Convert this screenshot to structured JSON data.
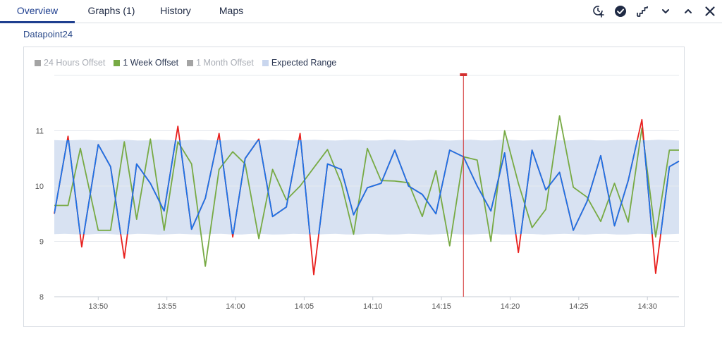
{
  "tabs": [
    {
      "label": "Overview",
      "active": true
    },
    {
      "label": "Graphs (1)",
      "active": false
    },
    {
      "label": "History",
      "active": false
    },
    {
      "label": "Maps",
      "active": false
    }
  ],
  "toolbar": {
    "icons": [
      "clock-plus-icon",
      "check-circle-icon",
      "stairs-icon",
      "chevron-down-icon",
      "chevron-up-icon",
      "close-icon"
    ]
  },
  "datapoint_title": "Datapoint24",
  "legend": [
    {
      "label": "24 Hours Offset",
      "color": "#a4a4a4",
      "enabled": false
    },
    {
      "label": "1 Week Offset",
      "color": "#77aa44",
      "enabled": true
    },
    {
      "label": "1 Month Offset",
      "color": "#a4a4a4",
      "enabled": false
    },
    {
      "label": "Expected Range",
      "color": "#c9d6ee",
      "enabled": true
    }
  ],
  "colors": {
    "accent": "#1f3f8f",
    "actual_line": "#1a73e8",
    "week_offset_line": "#77aa44",
    "out_of_range": "#e8201e",
    "expected_band": "#d8e2f2",
    "marker": "#d32f2f"
  },
  "chart_data": {
    "type": "line",
    "title": "",
    "xlabel": "",
    "ylabel": "",
    "ylim": [
      8,
      12
    ],
    "yticks": [
      8,
      9,
      10,
      11
    ],
    "x_tick_labels": [
      "13:50",
      "13:55",
      "14:00",
      "14:05",
      "14:10",
      "14:15",
      "14:20",
      "14:25",
      "14:30"
    ],
    "x_range_minutes": [
      -3.2,
      42.3
    ],
    "x_tick_minutes": [
      0,
      5,
      10,
      15,
      20,
      25,
      30,
      35,
      40
    ],
    "marker_minute": 26.6,
    "expected_range": {
      "lower": 9.13,
      "upper": 10.83
    },
    "series": [
      {
        "name": "",
        "role": "actual",
        "points": [
          [
            -3.2,
            9.5
          ],
          [
            -2.2,
            10.9
          ],
          [
            -1.2,
            8.9
          ],
          [
            0.0,
            10.75
          ],
          [
            0.9,
            10.35
          ],
          [
            1.9,
            8.7
          ],
          [
            2.8,
            10.4
          ],
          [
            3.8,
            10.05
          ],
          [
            4.8,
            9.55
          ],
          [
            5.8,
            11.08
          ],
          [
            6.8,
            9.22
          ],
          [
            7.8,
            9.78
          ],
          [
            8.8,
            10.95
          ],
          [
            9.8,
            9.08
          ],
          [
            10.7,
            10.5
          ],
          [
            11.7,
            10.85
          ],
          [
            12.7,
            9.45
          ],
          [
            13.7,
            9.62
          ],
          [
            14.7,
            10.95
          ],
          [
            15.7,
            8.4
          ],
          [
            16.7,
            10.4
          ],
          [
            17.7,
            10.3
          ],
          [
            18.6,
            9.48
          ],
          [
            19.6,
            9.97
          ],
          [
            20.6,
            10.05
          ],
          [
            21.6,
            10.65
          ],
          [
            22.6,
            10.0
          ],
          [
            23.6,
            9.85
          ],
          [
            24.6,
            9.5
          ],
          [
            25.6,
            10.65
          ],
          [
            26.6,
            10.53
          ],
          [
            27.6,
            10.0
          ],
          [
            28.6,
            9.55
          ],
          [
            29.6,
            10.6
          ],
          [
            30.6,
            8.8
          ],
          [
            31.6,
            10.65
          ],
          [
            32.6,
            9.93
          ],
          [
            33.6,
            10.25
          ],
          [
            34.6,
            9.2
          ],
          [
            35.6,
            9.72
          ],
          [
            36.6,
            10.55
          ],
          [
            37.6,
            9.28
          ],
          [
            38.6,
            10.1
          ],
          [
            39.6,
            11.2
          ],
          [
            40.6,
            8.42
          ],
          [
            41.6,
            10.35
          ],
          [
            42.3,
            10.45
          ]
        ]
      },
      {
        "name": "1 Week Offset",
        "role": "week",
        "points": [
          [
            -3.2,
            9.65
          ],
          [
            -2.2,
            9.65
          ],
          [
            -1.3,
            10.68
          ],
          [
            0.0,
            9.2
          ],
          [
            0.9,
            9.2
          ],
          [
            1.9,
            10.8
          ],
          [
            2.8,
            9.4
          ],
          [
            3.8,
            10.85
          ],
          [
            4.8,
            9.2
          ],
          [
            5.8,
            10.8
          ],
          [
            6.8,
            10.4
          ],
          [
            7.8,
            8.55
          ],
          [
            8.8,
            10.3
          ],
          [
            9.8,
            10.62
          ],
          [
            10.7,
            10.4
          ],
          [
            11.7,
            9.05
          ],
          [
            12.7,
            10.3
          ],
          [
            13.7,
            9.75
          ],
          [
            14.7,
            10.0
          ],
          [
            15.7,
            10.33
          ],
          [
            16.7,
            10.66
          ],
          [
            17.7,
            10.05
          ],
          [
            18.6,
            9.13
          ],
          [
            19.6,
            10.68
          ],
          [
            20.6,
            10.1
          ],
          [
            21.6,
            10.09
          ],
          [
            22.6,
            10.06
          ],
          [
            23.6,
            9.45
          ],
          [
            24.6,
            10.28
          ],
          [
            25.6,
            8.92
          ],
          [
            26.6,
            10.53
          ],
          [
            27.6,
            10.47
          ],
          [
            28.6,
            9.0
          ],
          [
            29.6,
            11.0
          ],
          [
            30.6,
            10.05
          ],
          [
            31.6,
            9.25
          ],
          [
            32.6,
            9.58
          ],
          [
            33.6,
            11.27
          ],
          [
            34.6,
            9.98
          ],
          [
            35.6,
            9.8
          ],
          [
            36.6,
            9.36
          ],
          [
            37.6,
            10.05
          ],
          [
            38.6,
            9.35
          ],
          [
            39.6,
            11.05
          ],
          [
            40.6,
            9.08
          ],
          [
            41.6,
            10.65
          ],
          [
            42.3,
            10.65
          ]
        ]
      }
    ]
  }
}
